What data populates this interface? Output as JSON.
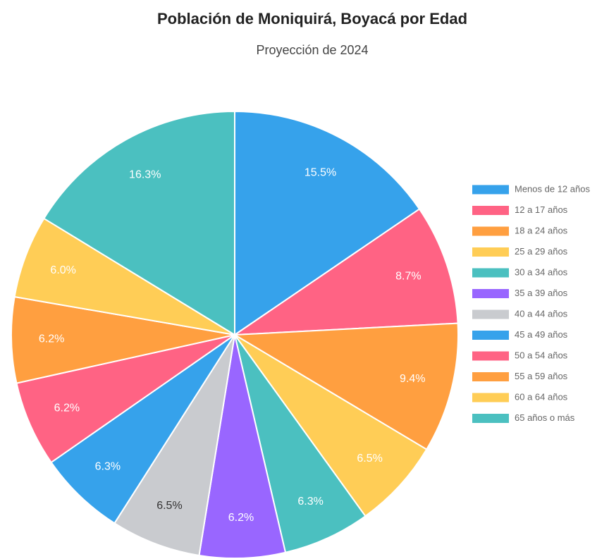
{
  "chart_data": {
    "type": "pie",
    "title": "Población de Moniquirá, Boyacá por Edad",
    "subtitle": "Proyección de 2024",
    "categories": [
      "Menos de 12 años",
      "12 a 17 años",
      "18 a 24 años",
      "25 a 29 años",
      "30 a 34 años",
      "35 a 39 años",
      "40 a 44 años",
      "45 a 49 años",
      "50 a 54 años",
      "55 a 59 años",
      "60 a 64 años",
      "65 años o más"
    ],
    "values": [
      15.5,
      8.7,
      9.4,
      6.5,
      6.3,
      6.2,
      6.5,
      6.3,
      6.2,
      6.2,
      6.0,
      16.3
    ],
    "value_labels": [
      "15.5%",
      "8.7%",
      "9.4%",
      "6.5%",
      "6.3%",
      "6.2%",
      "6.5%",
      "6.3%",
      "6.2%",
      "6.2%",
      "6.0%",
      "16.3%"
    ],
    "colors": [
      "#36a2eb",
      "#ff6384",
      "#ff9f40",
      "#ffcd56",
      "#4bc0c0",
      "#9966ff",
      "#c9cbcf",
      "#36a2eb",
      "#ff6384",
      "#ff9f40",
      "#ffcd56",
      "#4bc0c0"
    ],
    "legend": "right"
  }
}
